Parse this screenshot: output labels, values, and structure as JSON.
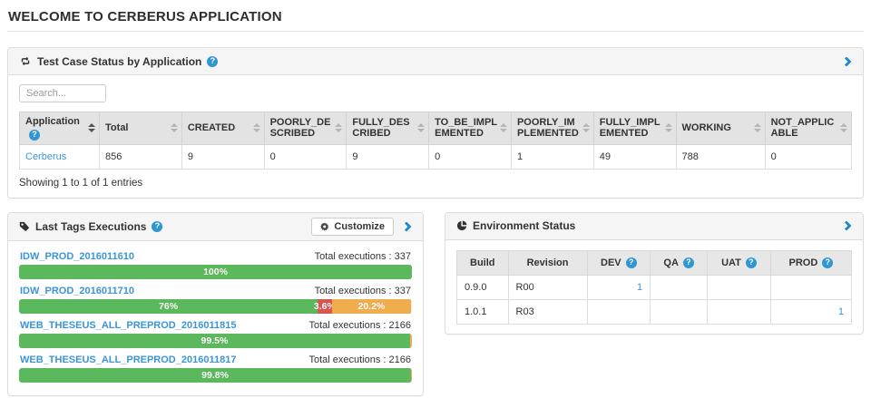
{
  "page": {
    "title": "WELCOME TO CERBERUS APPLICATION"
  },
  "colors": {
    "success_green": "#5cb85c",
    "danger_red": "#d9534f",
    "warning_yellow": "#f0ad4e",
    "link_blue": "#3b95d5",
    "chevron_blue": "#1d87c8",
    "help_badge_blue": "#2f96d2",
    "panel_heading_bg": "#f5f5f5",
    "table_header_bg": "#e3e3e3"
  },
  "icons": {
    "testcase_panel": "retweet-icon",
    "tags_panel": "tag-icon",
    "env_panel": "pie-chart-icon",
    "customize": "gear-icon",
    "help": "question-circle-icon",
    "expand": "chevron-right-icon",
    "sort": "sort-icon"
  },
  "testcase_panel": {
    "title": "Test Case Status by Application",
    "search_placeholder": "Search...",
    "table": {
      "columns": [
        "Application",
        "Total",
        "CREATED",
        "POORLY_DESCRIBED",
        "FULLY_DESCRIBED",
        "TO_BE_IMPLEMENTED",
        "POORLY_IMPLEMENTED",
        "FULLY_IMPLEMENTED",
        "WORKING",
        "NOT_APPLICABLE"
      ],
      "rows": [
        {
          "application": "Cerberus",
          "values": [
            "856",
            "9",
            "0",
            "9",
            "0",
            "1",
            "49",
            "788",
            "0"
          ]
        }
      ]
    },
    "footer": "Showing 1 to 1 of 1 entries"
  },
  "tags_panel": {
    "title": "Last Tags Executions",
    "customize_label": "Customize",
    "items": [
      {
        "tag": "IDW_PROD_2016011610",
        "total_label": "Total executions : 337",
        "segments": [
          {
            "label": "100%",
            "width": "100%",
            "color": "green"
          }
        ]
      },
      {
        "tag": "IDW_PROD_2016011710",
        "total_label": "Total executions : 337",
        "segments": [
          {
            "label": "76%",
            "width": "76%",
            "color": "green"
          },
          {
            "label": "3.6%",
            "width": "3.6%",
            "color": "red"
          },
          {
            "label": "20.2%",
            "width": "20.2%",
            "color": "yellow"
          }
        ]
      },
      {
        "tag": "WEB_THESEUS_ALL_PREPROD_2016011815",
        "total_label": "Total executions : 2166",
        "segments": [
          {
            "label": "99.5%",
            "width": "99.5%",
            "color": "green"
          },
          {
            "label": "",
            "width": "0.5%",
            "color": "yellow"
          }
        ]
      },
      {
        "tag": "WEB_THESEUS_ALL_PREPROD_2016011817",
        "total_label": "Total executions : 2166",
        "segments": [
          {
            "label": "99.8%",
            "width": "99.8%",
            "color": "green"
          },
          {
            "label": "",
            "width": "0.2%",
            "color": "yellow"
          }
        ]
      }
    ]
  },
  "env_panel": {
    "title": "Environment Status",
    "table": {
      "columns": [
        "Build",
        "Revision",
        "DEV",
        "QA",
        "UAT",
        "PROD"
      ],
      "rows": [
        {
          "cells": [
            "0.9.0",
            "R00",
            "1",
            "",
            "",
            ""
          ]
        },
        {
          "cells": [
            "1.0.1",
            "R03",
            "",
            "",
            "",
            "1"
          ]
        }
      ]
    }
  }
}
